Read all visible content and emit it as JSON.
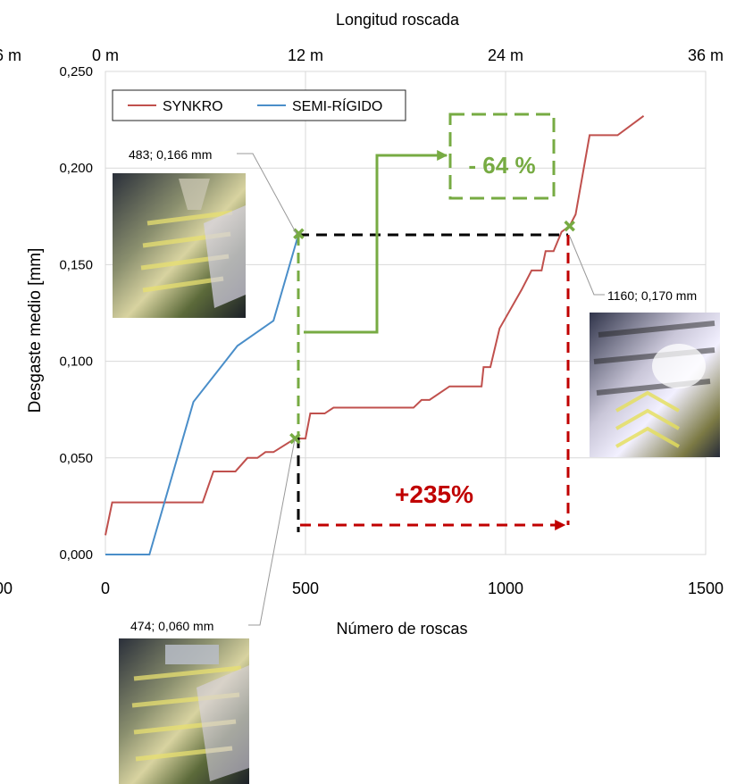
{
  "chart_data": {
    "type": "line",
    "title": "",
    "xlabel": "Número de roscas",
    "ylabel": "Desgaste medio [mm]",
    "x_top_label": "Longitud roscada",
    "xlim": [
      0,
      1500
    ],
    "ylim": [
      0,
      0.25
    ],
    "x_ticks": [
      {
        "v": 0,
        "label": "0"
      },
      {
        "v": 500,
        "label": "500"
      },
      {
        "v": 1000,
        "label": "1000"
      },
      {
        "v": 1500,
        "label": "1500"
      }
    ],
    "x_top_ticks": [
      {
        "v": 0,
        "label": "0 m"
      },
      {
        "v": 500,
        "label": "12 m"
      },
      {
        "v": 1000,
        "label": "24 m"
      },
      {
        "v": 1500,
        "label": "36 m"
      }
    ],
    "y_ticks": [
      {
        "v": 0,
        "label": "0,000"
      },
      {
        "v": 0.05,
        "label": "0,050"
      },
      {
        "v": 0.1,
        "label": "0,100"
      },
      {
        "v": 0.15,
        "label": "0,150"
      },
      {
        "v": 0.2,
        "label": "0,200"
      },
      {
        "v": 0.25,
        "label": "0,250"
      }
    ],
    "edge_fragments": {
      "top_left": "6 m",
      "bottom_left": "00"
    },
    "grid": true,
    "legend_position": "top-left",
    "series": [
      {
        "name": "SYNKRO",
        "color": "#c0504d",
        "points": [
          [
            0,
            0.01
          ],
          [
            17,
            0.027
          ],
          [
            243,
            0.027
          ],
          [
            270,
            0.043
          ],
          [
            325,
            0.043
          ],
          [
            355,
            0.05
          ],
          [
            380,
            0.05
          ],
          [
            400,
            0.053
          ],
          [
            420,
            0.053
          ],
          [
            474,
            0.06
          ],
          [
            500,
            0.06
          ],
          [
            512,
            0.073
          ],
          [
            548,
            0.073
          ],
          [
            570,
            0.076
          ],
          [
            770,
            0.076
          ],
          [
            790,
            0.08
          ],
          [
            810,
            0.08
          ],
          [
            860,
            0.087
          ],
          [
            940,
            0.087
          ],
          [
            945,
            0.097
          ],
          [
            962,
            0.097
          ],
          [
            985,
            0.117
          ],
          [
            1040,
            0.137
          ],
          [
            1065,
            0.147
          ],
          [
            1090,
            0.147
          ],
          [
            1100,
            0.157
          ],
          [
            1120,
            0.157
          ],
          [
            1140,
            0.167
          ],
          [
            1160,
            0.17
          ],
          [
            1175,
            0.176
          ],
          [
            1210,
            0.217
          ],
          [
            1280,
            0.217
          ],
          [
            1345,
            0.227
          ]
        ]
      },
      {
        "name": "SEMI-RÍGIDO",
        "color": "#4a8ec9",
        "points": [
          [
            0,
            0.0
          ],
          [
            110,
            0.0
          ],
          [
            220,
            0.079
          ],
          [
            330,
            0.108
          ],
          [
            420,
            0.121
          ],
          [
            483,
            0.166
          ]
        ]
      }
    ],
    "annotations": [
      {
        "label": "483; 0,166 mm",
        "x": 483,
        "y": 0.166
      },
      {
        "label": "1160; 0,170 mm",
        "x": 1160,
        "y": 0.17
      },
      {
        "label": "474; 0,060 mm",
        "x": 474,
        "y": 0.06
      }
    ],
    "callouts": [
      {
        "text": "- 64 %",
        "color": "#77ab43"
      },
      {
        "text": "+235%",
        "color": "#c00000"
      }
    ]
  }
}
